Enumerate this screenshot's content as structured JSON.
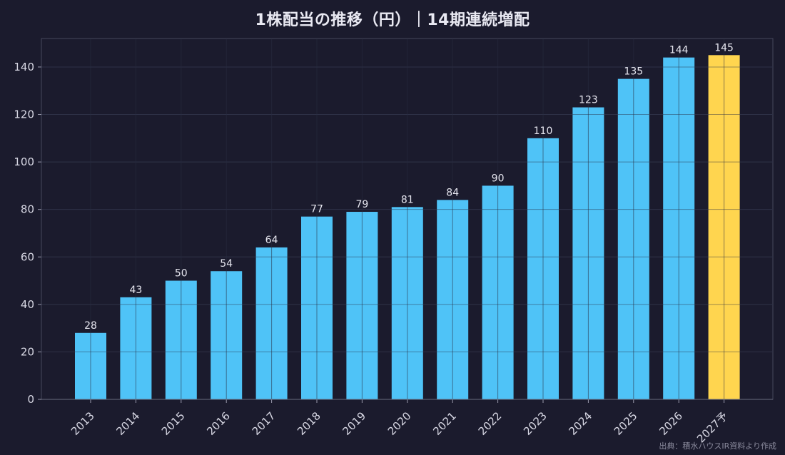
{
  "chart_data": {
    "type": "bar",
    "title": "1株配当の推移（円）｜14期連続増配",
    "categories": [
      "2013",
      "2014",
      "2015",
      "2016",
      "2017",
      "2018",
      "2019",
      "2020",
      "2021",
      "2022",
      "2023",
      "2024",
      "2025",
      "2026",
      "2027予"
    ],
    "values": [
      28,
      43,
      50,
      54,
      64,
      77,
      79,
      81,
      84,
      90,
      110,
      123,
      135,
      144,
      145
    ],
    "forecast_index": 14,
    "ylim": [
      0,
      152
    ],
    "yticks": [
      0,
      20,
      40,
      60,
      80,
      100,
      120,
      140
    ],
    "grid": true,
    "colors": {
      "actual": "#4fc3f7",
      "forecast": "#ffd54f",
      "grid": "#33354a",
      "axis": "#45475c"
    },
    "xlabel": "",
    "ylabel": ""
  },
  "source_note": "出典：積水ハウスIR資料より作成"
}
